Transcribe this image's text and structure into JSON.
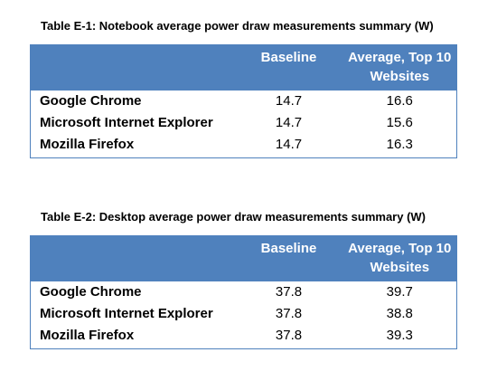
{
  "tables": [
    {
      "caption": "Table E-1: Notebook average power draw measurements summary (W)",
      "headers": [
        "",
        "Baseline",
        "Average, Top 10 Websites"
      ],
      "rows": [
        {
          "browser": "Google Chrome",
          "baseline": "14.7",
          "average": "16.6"
        },
        {
          "browser": "Microsoft Internet Explorer",
          "baseline": "14.7",
          "average": "15.6"
        },
        {
          "browser": "Mozilla Firefox",
          "baseline": "14.7",
          "average": "16.3"
        }
      ]
    },
    {
      "caption": "Table E-2: Desktop average power draw measurements summary (W)",
      "headers": [
        "",
        "Baseline",
        "Average, Top 10 Websites"
      ],
      "rows": [
        {
          "browser": "Google Chrome",
          "baseline": "37.8",
          "average": "39.7"
        },
        {
          "browser": "Microsoft Internet Explorer",
          "baseline": "37.8",
          "average": "38.8"
        },
        {
          "browser": "Mozilla Firefox",
          "baseline": "37.8",
          "average": "39.3"
        }
      ]
    }
  ],
  "colors": {
    "header_bg": "#4f81bd",
    "header_text": "#ffffff",
    "border": "#4f81bd"
  }
}
